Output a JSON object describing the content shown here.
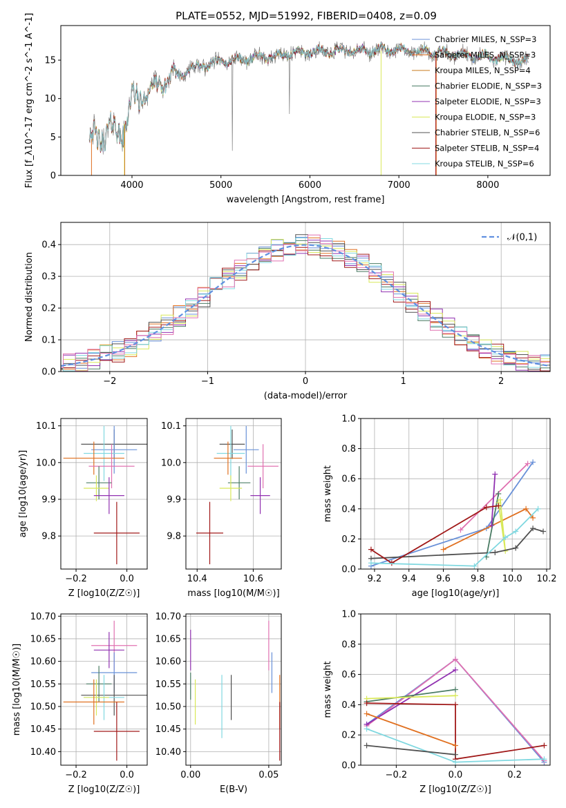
{
  "figure": {
    "title": "PLATE=0552, MJD=51992, FIBERID=0408, z=0.09"
  },
  "colors": {
    "chabrier_miles": "#6890d8",
    "salpeter_miles": "#e07020",
    "kroupa_miles": "#c87818",
    "chabrier_elodie": "#4a7c64",
    "salpeter_elodie": "#9030b0",
    "kroupa_elodie": "#d8e858",
    "chabrier_stelib": "#505050",
    "salpeter_stelib": "#a01818",
    "kroupa_stelib": "#80d8e0",
    "pink": "#e070b0",
    "normal_curve": "#6090e0"
  },
  "chart_data": [
    {
      "id": "spectrum",
      "type": "line",
      "xlabel": "wavelength [Angstrom, rest frame]",
      "ylabel": "Flux [f_λ10^-17 erg cm^-2 s^-1 A^-1]",
      "xlim": [
        3200,
        8700
      ],
      "ylim": [
        0,
        19.5
      ],
      "xticks": [
        4000,
        5000,
        6000,
        7000,
        8000
      ],
      "yticks": [
        0,
        5,
        10,
        15
      ],
      "grid": false,
      "legend": "upper-right",
      "continuum": [
        [
          3500,
          4.5
        ],
        [
          3700,
          5.5
        ],
        [
          3900,
          6.0
        ],
        [
          4000,
          9.5
        ],
        [
          4200,
          11.0
        ],
        [
          4400,
          12.5
        ],
        [
          4700,
          14.0
        ],
        [
          5000,
          14.8
        ],
        [
          5300,
          15.2
        ],
        [
          5600,
          15.5
        ],
        [
          5900,
          16.0
        ],
        [
          6200,
          16.2
        ],
        [
          6600,
          16.2
        ],
        [
          7000,
          16.3
        ],
        [
          7400,
          16.0
        ],
        [
          7800,
          15.6
        ],
        [
          8200,
          15.2
        ],
        [
          8400,
          14.8
        ]
      ],
      "series": [
        {
          "name": "Chabrier MILES, N_SSP=3",
          "color_key": "chabrier_miles"
        },
        {
          "name": "Salpeter MILES, N_SSP=3",
          "color_key": "salpeter_miles"
        },
        {
          "name": "Kroupa MILES, N_SSP=4",
          "color_key": "kroupa_miles"
        },
        {
          "name": "Chabrier ELODIE, N_SSP=3",
          "color_key": "chabrier_elodie"
        },
        {
          "name": "Salpeter ELODIE, N_SSP=3",
          "color_key": "salpeter_elodie"
        },
        {
          "name": "Kroupa ELODIE, N_SSP=3",
          "color_key": "kroupa_elodie"
        },
        {
          "name": "Chabrier STELIB, N_SSP=6",
          "color_key": "chabrier_stelib"
        },
        {
          "name": "Salpeter STELIB, N_SSP=4",
          "color_key": "salpeter_stelib"
        },
        {
          "name": "Kroupa STELIB, N_SSP=6",
          "color_key": "kroupa_stelib"
        }
      ]
    },
    {
      "id": "residuals",
      "type": "line",
      "xlabel": "(data-model)/error",
      "ylabel": "Normed distribution",
      "xlim": [
        -2.5,
        2.5
      ],
      "ylim": [
        0,
        0.47
      ],
      "xticks": [
        -2,
        -1,
        0,
        1,
        2
      ],
      "yticks": [
        0.0,
        0.1,
        0.2,
        0.3,
        0.4
      ],
      "grid": true,
      "legend": "upper-right",
      "normal_label": "𝒩(0,1)",
      "hist_colors": [
        "chabrier_miles",
        "salpeter_miles",
        "chabrier_elodie",
        "salpeter_elodie",
        "kroupa_elodie",
        "chabrier_stelib",
        "salpeter_stelib",
        "kroupa_stelib",
        "pink"
      ]
    },
    {
      "id": "z_age",
      "type": "scatter",
      "xlabel": "Z [log10(Z/Z☉)]",
      "ylabel": "age [log10(age/yr)]",
      "xlim": [
        -0.26,
        0.08
      ],
      "ylim": [
        9.71,
        10.12
      ],
      "xticks": [
        -0.2,
        0.0
      ],
      "yticks": [
        9.8,
        9.9,
        10.0,
        10.1
      ],
      "grid": true,
      "points": [
        {
          "color_key": "chabrier_stelib",
          "x": -0.05,
          "xerr": 0.13,
          "y": 10.05,
          "yerr": 0.04
        },
        {
          "color_key": "chabrier_miles",
          "x": -0.05,
          "xerr": 0.09,
          "y": 10.035,
          "yerr": 0.065
        },
        {
          "color_key": "kroupa_stelib",
          "x": -0.09,
          "xerr": 0.08,
          "y": 10.025,
          "yerr": 0.075
        },
        {
          "color_key": "salpeter_miles",
          "x": -0.13,
          "xerr": 0.12,
          "y": 10.012,
          "yerr": 0.045
        },
        {
          "color_key": "pink",
          "x": -0.06,
          "xerr": 0.09,
          "y": 9.99,
          "yerr": 0.06
        },
        {
          "color_key": "chabrier_elodie",
          "x": -0.11,
          "xerr": 0.05,
          "y": 9.945,
          "yerr": 0.045
        },
        {
          "color_key": "kroupa_elodie",
          "x": -0.12,
          "xerr": 0.05,
          "y": 9.93,
          "yerr": 0.035
        },
        {
          "color_key": "salpeter_elodie",
          "x": -0.07,
          "xerr": 0.06,
          "y": 9.91,
          "yerr": 0.05
        },
        {
          "color_key": "salpeter_stelib",
          "x": -0.04,
          "xerr": 0.09,
          "y": 9.808,
          "yerr": 0.085
        }
      ]
    },
    {
      "id": "mass_age",
      "type": "scatter",
      "xlabel": "mass [log10(M/M☉)]",
      "ylabel": "",
      "xlim": [
        10.36,
        10.7
      ],
      "ylim": [
        9.71,
        10.12
      ],
      "xticks": [
        10.4,
        10.6
      ],
      "yticks": [
        9.8,
        9.9,
        10.0,
        10.1
      ],
      "grid": true,
      "points": [
        {
          "color_key": "chabrier_stelib",
          "x": 10.525,
          "xerr": 0.045,
          "y": 10.05,
          "yerr": 0.04
        },
        {
          "color_key": "chabrier_miles",
          "x": 10.575,
          "xerr": 0.045,
          "y": 10.035,
          "yerr": 0.065
        },
        {
          "color_key": "kroupa_stelib",
          "x": 10.52,
          "xerr": 0.05,
          "y": 10.025,
          "yerr": 0.075
        },
        {
          "color_key": "salpeter_miles",
          "x": 10.51,
          "xerr": 0.05,
          "y": 10.012,
          "yerr": 0.045
        },
        {
          "color_key": "pink",
          "x": 10.635,
          "xerr": 0.055,
          "y": 9.99,
          "yerr": 0.06
        },
        {
          "color_key": "chabrier_elodie",
          "x": 10.55,
          "xerr": 0.04,
          "y": 9.945,
          "yerr": 0.045
        },
        {
          "color_key": "kroupa_elodie",
          "x": 10.52,
          "xerr": 0.04,
          "y": 9.93,
          "yerr": 0.035
        },
        {
          "color_key": "salpeter_elodie",
          "x": 10.625,
          "xerr": 0.035,
          "y": 9.91,
          "yerr": 0.05
        },
        {
          "color_key": "salpeter_stelib",
          "x": 10.445,
          "xerr": 0.048,
          "y": 9.808,
          "yerr": 0.085
        }
      ]
    },
    {
      "id": "age_weight",
      "type": "line",
      "xlabel": "age [log10(age/yr)]",
      "ylabel": "mass weight",
      "xlim": [
        9.12,
        10.22
      ],
      "ylim": [
        0,
        1.0
      ],
      "xticks": [
        9.2,
        9.4,
        9.6,
        9.8,
        10.0,
        10.2
      ],
      "yticks": [
        0.0,
        0.2,
        0.4,
        0.6,
        0.8,
        1.0
      ],
      "grid": true,
      "series": [
        {
          "color_key": "chabrier_miles",
          "points": [
            [
              9.18,
              0.02
            ],
            [
              9.85,
              0.27
            ],
            [
              10.12,
              0.71
            ]
          ]
        },
        {
          "color_key": "pink",
          "points": [
            [
              9.7,
              0.26
            ],
            [
              10.09,
              0.7
            ]
          ]
        },
        {
          "color_key": "salpeter_miles",
          "points": [
            [
              9.6,
              0.13
            ],
            [
              10.08,
              0.4
            ],
            [
              10.12,
              0.34
            ]
          ]
        },
        {
          "color_key": "chabrier_elodie",
          "points": [
            [
              9.85,
              0.08
            ],
            [
              9.92,
              0.5
            ]
          ]
        },
        {
          "color_key": "salpeter_elodie",
          "points": [
            [
              9.88,
              0.29
            ],
            [
              9.9,
              0.63
            ]
          ]
        },
        {
          "color_key": "kroupa_elodie",
          "points": [
            [
              9.92,
              0.44
            ],
            [
              9.96,
              0.12
            ],
            [
              9.93,
              0.46
            ]
          ]
        },
        {
          "color_key": "chabrier_stelib",
          "points": [
            [
              9.18,
              0.07
            ],
            [
              9.9,
              0.11
            ],
            [
              10.02,
              0.14
            ],
            [
              10.12,
              0.27
            ],
            [
              10.18,
              0.25
            ]
          ]
        },
        {
          "color_key": "salpeter_stelib",
          "points": [
            [
              9.18,
              0.13
            ],
            [
              9.3,
              0.04
            ],
            [
              9.85,
              0.41
            ],
            [
              9.92,
              0.42
            ]
          ]
        },
        {
          "color_key": "kroupa_stelib",
          "points": [
            [
              9.18,
              0.04
            ],
            [
              9.78,
              0.02
            ],
            [
              9.96,
              0.21
            ],
            [
              10.02,
              0.25
            ],
            [
              10.15,
              0.4
            ]
          ]
        }
      ]
    },
    {
      "id": "z_mass",
      "type": "scatter",
      "xlabel": "Z [log10(Z/Z☉)]",
      "ylabel": "mass [log10(M/M☉)]",
      "xlim": [
        -0.26,
        0.08
      ],
      "ylim": [
        10.37,
        10.705
      ],
      "xticks": [
        -0.2,
        0.0
      ],
      "yticks": [
        10.4,
        10.45,
        10.5,
        10.55,
        10.6,
        10.65,
        10.7
      ],
      "grid": true,
      "points": [
        {
          "color_key": "pink",
          "x": -0.05,
          "xerr": 0.09,
          "y": 10.635,
          "yerr": 0.055
        },
        {
          "color_key": "salpeter_elodie",
          "x": -0.07,
          "xerr": 0.06,
          "y": 10.625,
          "yerr": 0.04
        },
        {
          "color_key": "chabrier_miles",
          "x": -0.05,
          "xerr": 0.09,
          "y": 10.575,
          "yerr": 0.045
        },
        {
          "color_key": "chabrier_elodie",
          "x": -0.11,
          "xerr": 0.05,
          "y": 10.55,
          "yerr": 0.04
        },
        {
          "color_key": "chabrier_stelib",
          "x": -0.05,
          "xerr": 0.13,
          "y": 10.525,
          "yerr": 0.045
        },
        {
          "color_key": "kroupa_stelib",
          "x": -0.09,
          "xerr": 0.08,
          "y": 10.52,
          "yerr": 0.05
        },
        {
          "color_key": "kroupa_elodie",
          "x": -0.12,
          "xerr": 0.05,
          "y": 10.52,
          "yerr": 0.04
        },
        {
          "color_key": "salpeter_miles",
          "x": -0.13,
          "xerr": 0.12,
          "y": 10.51,
          "yerr": 0.05
        },
        {
          "color_key": "salpeter_stelib",
          "x": -0.04,
          "xerr": 0.09,
          "y": 10.445,
          "yerr": 0.065
        }
      ]
    },
    {
      "id": "ebv_mass",
      "type": "scatter",
      "xlabel": "E(B-V)",
      "ylabel": "",
      "xlim": [
        -0.003,
        0.058
      ],
      "ylim": [
        10.37,
        10.705
      ],
      "xticks": [
        0.0,
        0.05
      ],
      "yticks": [
        10.4,
        10.45,
        10.5,
        10.55,
        10.6,
        10.65,
        10.7
      ],
      "grid": true,
      "points": [
        {
          "color_key": "salpeter_elodie",
          "x": 0.0,
          "y": 10.625,
          "yerr": 0.045
        },
        {
          "color_key": "chabrier_elodie",
          "x": 0.0,
          "y": 10.545,
          "yerr": 0.03
        },
        {
          "color_key": "kroupa_elodie",
          "x": 0.003,
          "y": 10.51,
          "yerr": 0.05
        },
        {
          "color_key": "kroupa_stelib",
          "x": 0.02,
          "y": 10.5,
          "yerr": 0.07
        },
        {
          "color_key": "chabrier_stelib",
          "x": 0.026,
          "y": 10.52,
          "yerr": 0.05
        },
        {
          "color_key": "pink",
          "x": 0.05,
          "y": 10.635,
          "yerr": 0.055
        },
        {
          "color_key": "chabrier_miles",
          "x": 0.052,
          "y": 10.575,
          "yerr": 0.045
        },
        {
          "color_key": "salpeter_miles",
          "x": 0.057,
          "y": 10.51,
          "yerr": 0.06
        },
        {
          "color_key": "salpeter_stelib",
          "x": 0.057,
          "y": 10.445,
          "yerr": 0.065
        }
      ]
    },
    {
      "id": "z_weight",
      "type": "line",
      "xlabel": "Z [log10(Z/Z☉)]",
      "ylabel": "mass weight",
      "xlim": [
        -0.32,
        0.32
      ],
      "ylim": [
        0,
        1.0
      ],
      "xticks": [
        -0.2,
        0.0,
        0.2
      ],
      "yticks": [
        0.0,
        0.2,
        0.4,
        0.6,
        0.8,
        1.0
      ],
      "grid": true,
      "series": [
        {
          "color_key": "chabrier_miles",
          "points": [
            [
              -0.3,
              0.27
            ],
            [
              0.0,
              0.7
            ],
            [
              0.3,
              0.02
            ]
          ]
        },
        {
          "color_key": "pink",
          "points": [
            [
              -0.3,
              0.26
            ],
            [
              0.0,
              0.7
            ],
            [
              0.3,
              0.03
            ]
          ]
        },
        {
          "color_key": "salpeter_elodie",
          "points": [
            [
              -0.3,
              0.27
            ],
            [
              0.0,
              0.63
            ]
          ]
        },
        {
          "color_key": "chabrier_elodie",
          "points": [
            [
              -0.3,
              0.42
            ],
            [
              0.0,
              0.5
            ]
          ]
        },
        {
          "color_key": "kroupa_elodie",
          "points": [
            [
              -0.3,
              0.44
            ],
            [
              0.0,
              0.46
            ]
          ]
        },
        {
          "color_key": "salpeter_stelib",
          "points": [
            [
              -0.3,
              0.41
            ],
            [
              0.0,
              0.4
            ],
            [
              0.0,
              0.04
            ],
            [
              0.3,
              0.13
            ]
          ]
        },
        {
          "color_key": "salpeter_miles",
          "points": [
            [
              -0.3,
              0.34
            ],
            [
              0.0,
              0.13
            ]
          ]
        },
        {
          "color_key": "kroupa_stelib",
          "points": [
            [
              -0.3,
              0.24
            ],
            [
              0.0,
              0.02
            ],
            [
              0.3,
              0.04
            ]
          ]
        },
        {
          "color_key": "chabrier_stelib",
          "points": [
            [
              -0.3,
              0.13
            ],
            [
              0.0,
              0.07
            ]
          ]
        }
      ]
    }
  ]
}
